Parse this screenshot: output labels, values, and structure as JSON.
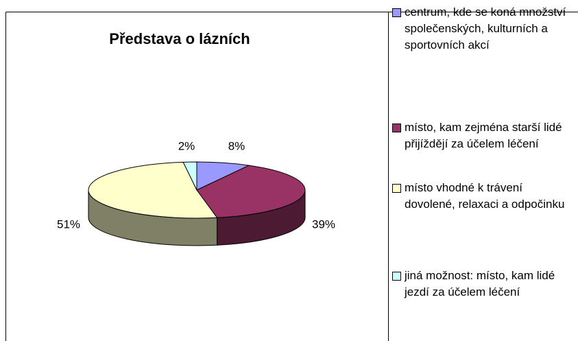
{
  "chart_data": {
    "type": "pie3d",
    "title": "Představa o lázních",
    "categories": [
      "centrum, kde se koná množství společenských, kulturních a sportovních akcí",
      "místo, kam zejména starší lidé přijíždějí za účelem léčení",
      "místo vhodné k trávení dovolené, relaxaci a odpočinku",
      "jiná možnost: místo, kam lidé jezdí za účelem léčení"
    ],
    "values": [
      8,
      39,
      51,
      2
    ],
    "value_labels": [
      "8%",
      "39%",
      "51%",
      "2%"
    ],
    "colors": [
      "#9999ff",
      "#993366",
      "#ffffcc",
      "#ccffff"
    ],
    "legend": "right"
  }
}
